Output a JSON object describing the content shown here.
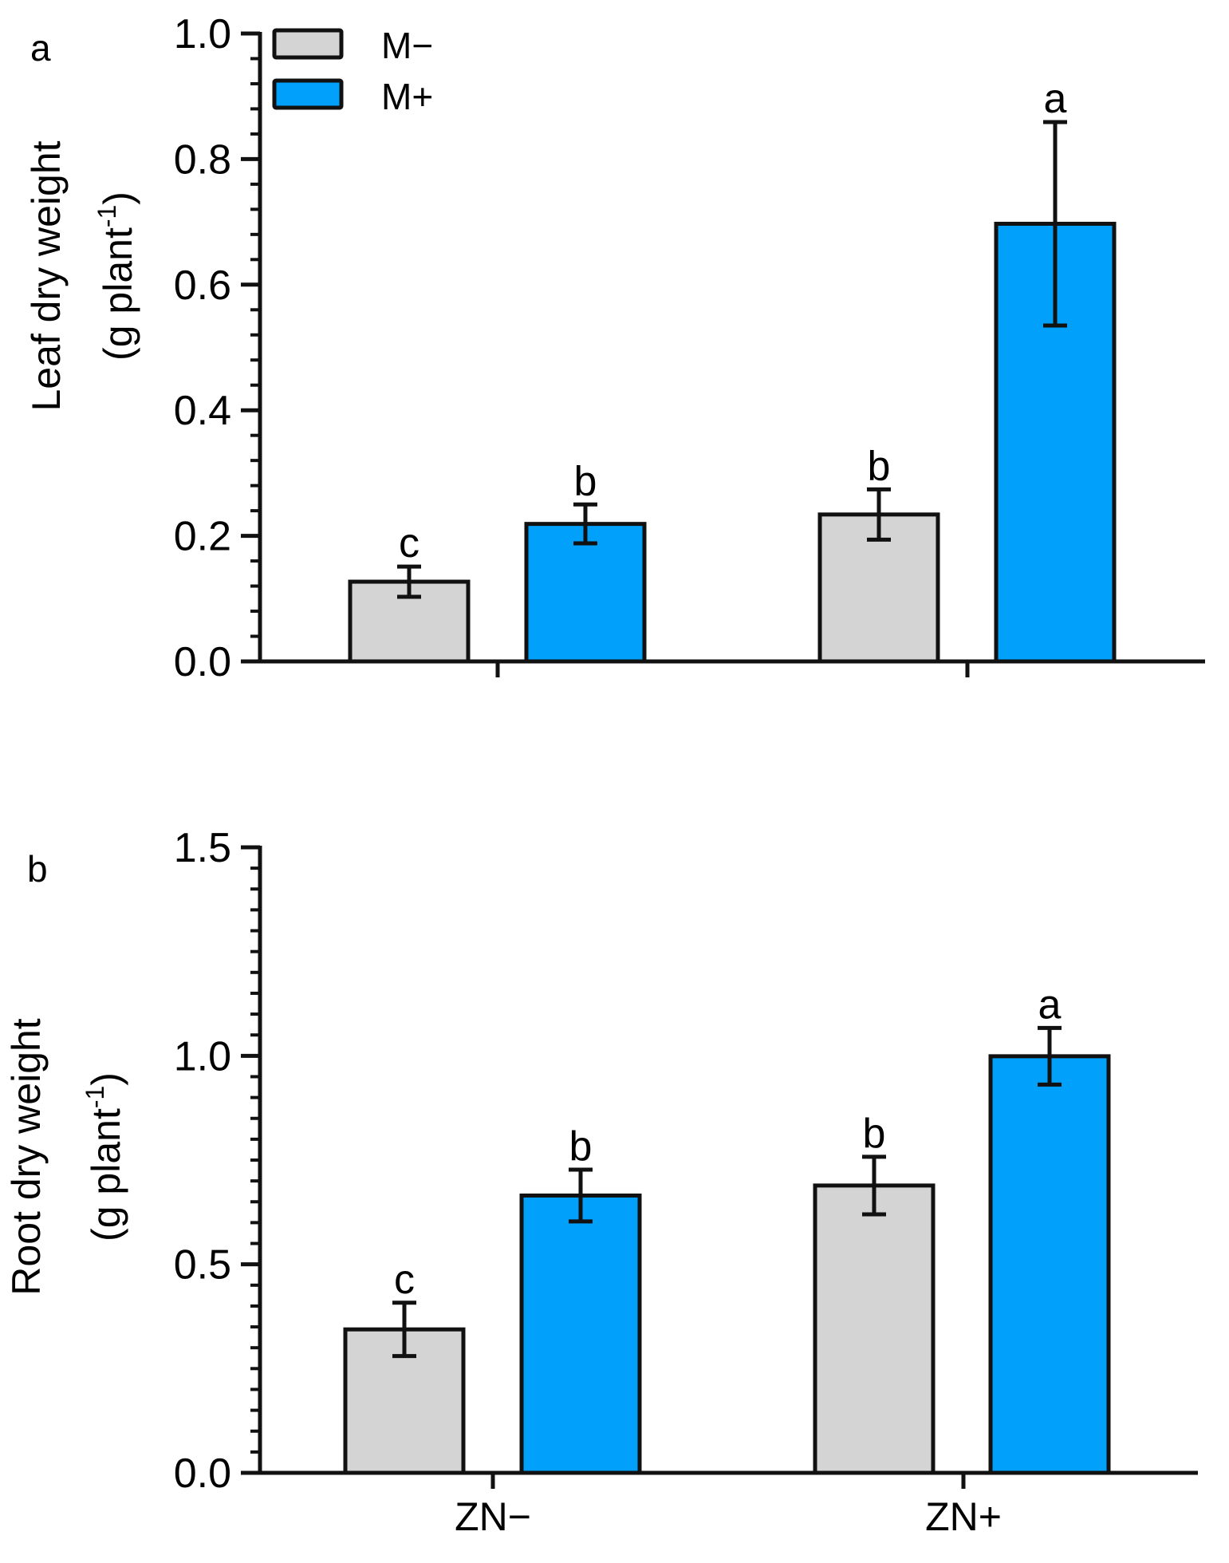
{
  "colors": {
    "m_minus": "#d4d4d4",
    "m_plus": "#00a0fb",
    "axis": "#111111"
  },
  "legend": [
    {
      "label": "M−",
      "color": "#d4d4d4"
    },
    {
      "label": "M+",
      "color": "#00a0fb"
    }
  ],
  "chart_data": [
    {
      "type": "bar",
      "panel_label": "a",
      "ylabel_line1": "Leaf dry weight",
      "ylabel_line2_prefix": "(g plant",
      "ylabel_sup": "-1",
      "ylabel_line2_suffix": ")",
      "ylim": [
        0,
        1.0
      ],
      "yticks": [
        "0.0",
        "0.2",
        "0.4",
        "0.6",
        "0.8",
        "1.0"
      ],
      "ytick_values": [
        0,
        0.2,
        0.4,
        0.6,
        0.8,
        1.0
      ],
      "minor_step": 0.04,
      "categories": [
        "ZN−",
        "ZN+"
      ],
      "show_category_labels": false,
      "series": [
        {
          "name": "M−",
          "values": [
            0.127,
            0.234
          ],
          "errors": [
            0.024,
            0.04
          ],
          "letters": [
            "c",
            "b"
          ]
        },
        {
          "name": "M+",
          "values": [
            0.219,
            0.697
          ],
          "errors": [
            0.031,
            0.162
          ],
          "letters": [
            "b",
            "a"
          ]
        }
      ]
    },
    {
      "type": "bar",
      "panel_label": "b",
      "ylabel_line1": "Root dry weight",
      "ylabel_line2_prefix": "(g plant",
      "ylabel_sup": "-1",
      "ylabel_line2_suffix": ")",
      "ylim": [
        0,
        1.5
      ],
      "yticks": [
        "0.0",
        "0.5",
        "1.0",
        "1.5"
      ],
      "ytick_values": [
        0,
        0.5,
        1.0,
        1.5
      ],
      "minor_step": 0.05,
      "categories": [
        "ZN−",
        "ZN+"
      ],
      "show_category_labels": true,
      "series": [
        {
          "name": "M−",
          "values": [
            0.344,
            0.689
          ],
          "errors": [
            0.064,
            0.069
          ],
          "letters": [
            "c",
            "b"
          ]
        },
        {
          "name": "M+",
          "values": [
            0.665,
            0.999
          ],
          "errors": [
            0.062,
            0.068
          ],
          "letters": [
            "b",
            "a"
          ]
        }
      ]
    }
  ]
}
